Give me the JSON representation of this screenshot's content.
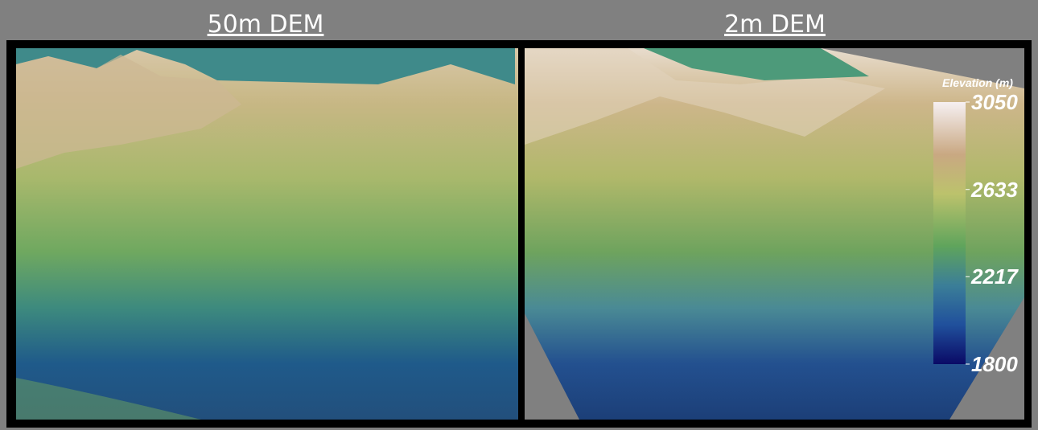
{
  "panels": [
    {
      "title": "50m DEM"
    },
    {
      "title": "2m DEM"
    }
  ],
  "colorbar": {
    "title": "Elevation (m)",
    "lim": [
      1800,
      3050
    ],
    "ticks": [
      3050,
      2633,
      2217,
      1800
    ]
  }
}
